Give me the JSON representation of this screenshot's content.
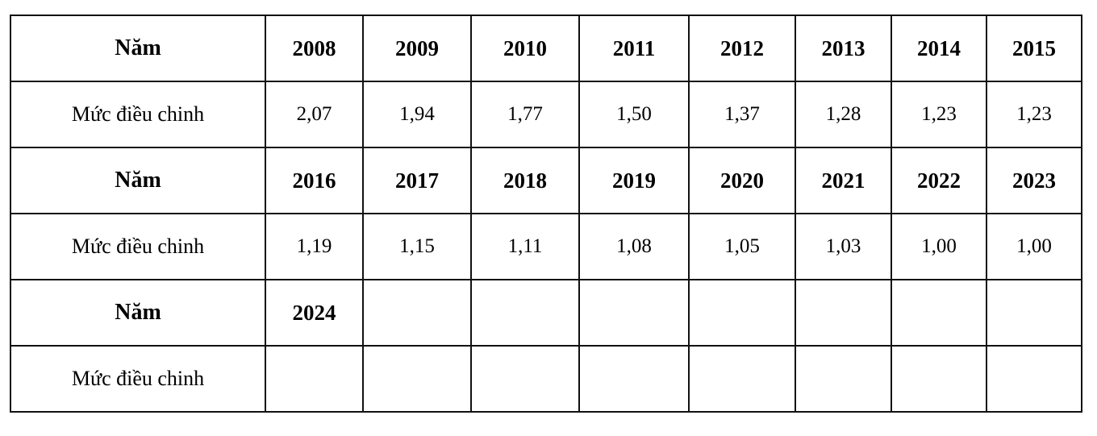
{
  "table": {
    "rows": [
      [
        "Năm",
        "2008",
        "2009",
        "2010",
        "2011",
        "2012",
        "2013",
        "2014",
        "2015"
      ],
      [
        "Mức điều chinh",
        "2,07",
        "1,94",
        "1,77",
        "1,50",
        "1,37",
        "1,28",
        "1,23",
        "1,23"
      ],
      [
        "Năm",
        "2016",
        "2017",
        "2018",
        "2019",
        "2020",
        "2021",
        "2022",
        "2023"
      ],
      [
        "Mức điều chinh",
        "1,19",
        "1,15",
        "1,11",
        "1,08",
        "1,05",
        "1,03",
        "1,00",
        "1,00"
      ],
      [
        "Năm",
        "2024"
      ],
      [
        "Mức điều chinh"
      ]
    ]
  }
}
